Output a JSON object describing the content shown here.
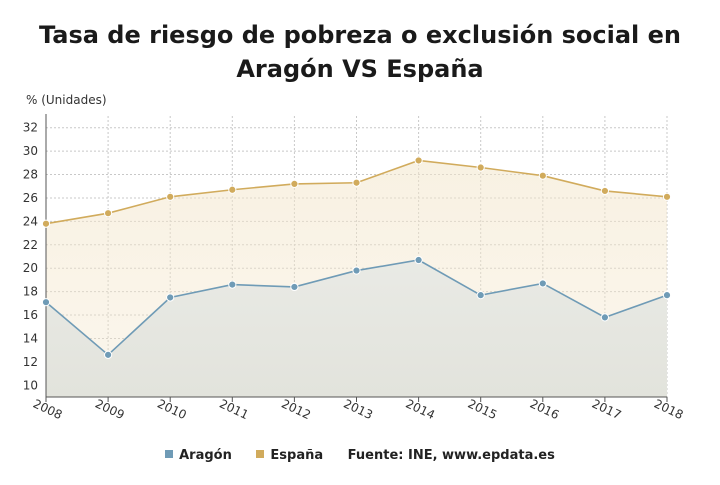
{
  "chart_data": {
    "type": "line",
    "title": "Tasa de riesgo de pobreza o exclusión social en Aragón VS España",
    "ylabel": "% (Unidades)",
    "xlabel": "",
    "x": [
      "2008",
      "2009",
      "2010",
      "2011",
      "2012",
      "2013",
      "2014",
      "2015",
      "2016",
      "2017",
      "2018"
    ],
    "ylim": [
      9,
      33
    ],
    "yticks": [
      10,
      12,
      14,
      16,
      18,
      20,
      22,
      24,
      26,
      28,
      30,
      32
    ],
    "grid": true,
    "legend_position": "bottom",
    "series": [
      {
        "name": "Aragón",
        "color": "#6f9bb6",
        "values": [
          17.1,
          12.6,
          17.5,
          18.6,
          18.4,
          19.8,
          20.7,
          17.7,
          18.7,
          15.8,
          17.7
        ]
      },
      {
        "name": "España",
        "color": "#d1ab5c",
        "values": [
          23.8,
          24.7,
          26.1,
          26.7,
          27.2,
          27.3,
          29.2,
          28.6,
          27.9,
          26.6,
          26.1
        ]
      }
    ],
    "source": "Fuente: INE, www.epdata.es"
  }
}
